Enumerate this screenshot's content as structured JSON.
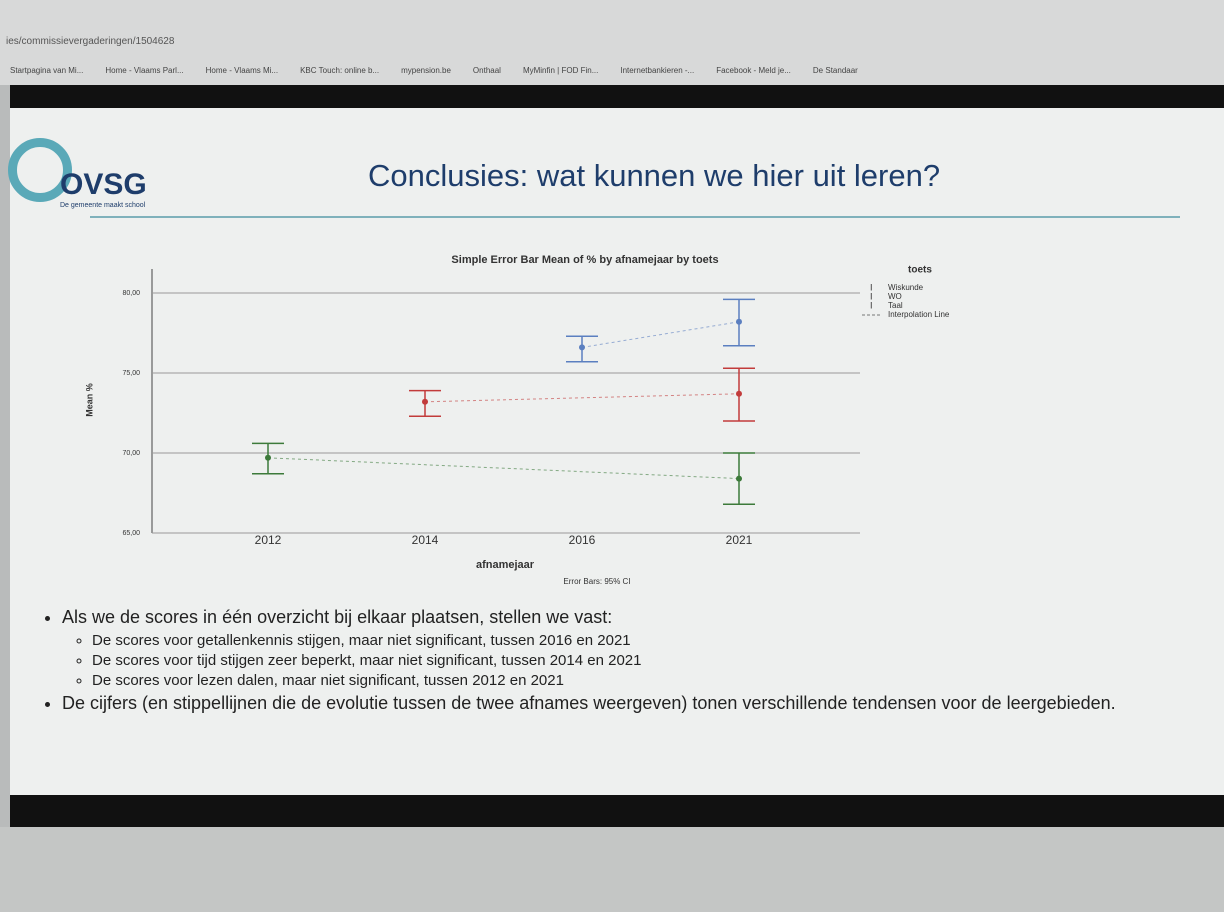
{
  "browser": {
    "url": "ies/commissievergaderingen/1504628",
    "bookmarks": [
      "Startpagina van Mi...",
      "Home - Vlaams Parl...",
      "Home - Vlaams Mi...",
      "KBC Touch: online b...",
      "mypension.be",
      "Onthaal",
      "MyMinfin | FOD Fin...",
      "Internetbankieren -...",
      "Facebook - Meld je...",
      "De Standaar"
    ]
  },
  "slide": {
    "logo": "OVSG",
    "tagline": "De gemeente maakt school",
    "title": "Conclusies: wat kunnen we hier uit leren?",
    "bullets": [
      {
        "text": "Als we de scores in één overzicht bij elkaar plaatsen, stellen we vast:",
        "sub": [
          "De scores voor getallenkennis stijgen, maar niet significant, tussen 2016 en 2021",
          "De scores voor tijd stijgen zeer beperkt, maar niet significant, tussen 2014 en 2021",
          "De scores voor lezen dalen, maar niet significant, tussen 2012 en 2021"
        ]
      },
      {
        "text": "De cijfers (en stippellijnen die de evolutie tussen de twee afnames weergeven) tonen verschillende tendensen voor de leergebieden.",
        "sub": []
      }
    ]
  },
  "chart_data": {
    "type": "errorbar",
    "title": "Simple Error Bar Mean of % by afnamejaar by toets",
    "x_label": "afnamejaar",
    "y_label": "Mean %",
    "footnote": "Error Bars: 95% CI",
    "legend_title": "toets",
    "interpolation_label": "Interpolation Line",
    "categories": [
      "2012",
      "2014",
      "2016",
      "2021"
    ],
    "ylim": [
      65,
      81.5
    ],
    "yticks": [
      {
        "value": 65,
        "label": "65,00"
      },
      {
        "value": 70,
        "label": "70,00"
      },
      {
        "value": 75,
        "label": "75,00"
      },
      {
        "value": 80,
        "label": "80,00"
      }
    ],
    "grid": true,
    "series": [
      {
        "name": "Wiskunde",
        "color": "#5b7fc0",
        "values": [
          null,
          null,
          76.6,
          78.2
        ],
        "ci_low": [
          null,
          null,
          75.7,
          76.7
        ],
        "ci_high": [
          null,
          null,
          77.3,
          79.6
        ]
      },
      {
        "name": "WO",
        "color": "#c23b3b",
        "values": [
          null,
          73.2,
          null,
          73.7
        ],
        "ci_low": [
          null,
          72.3,
          null,
          72.0
        ],
        "ci_high": [
          null,
          73.9,
          null,
          75.3
        ]
      },
      {
        "name": "Taal",
        "color": "#3c7a3a",
        "values": [
          69.7,
          null,
          null,
          68.4
        ],
        "ci_low": [
          68.7,
          null,
          null,
          66.8
        ],
        "ci_high": [
          70.6,
          null,
          null,
          70.0
        ]
      }
    ]
  }
}
